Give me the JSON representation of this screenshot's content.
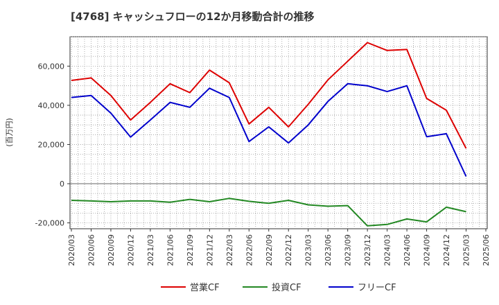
{
  "chart_data": {
    "type": "line",
    "title": "[4768]  キャッシュフローの12か月移動合計の推移",
    "ylabel": "(百万円)",
    "xlabel": "",
    "ylim": [
      -23000,
      75000
    ],
    "yticks": [
      -20000,
      0,
      20000,
      40000,
      60000
    ],
    "ytick_labels": [
      "-20,000",
      "0",
      "20,000",
      "40,000",
      "60,000"
    ],
    "xticks": [
      "2020/03",
      "2020/06",
      "2020/09",
      "2020/12",
      "2021/03",
      "2021/06",
      "2021/09",
      "2021/12",
      "2022/03",
      "2022/06",
      "2022/09",
      "2022/12",
      "2023/03",
      "2023/06",
      "2023/09",
      "2023/12",
      "2024/03",
      "2024/06",
      "2024/09",
      "2024/12",
      "2025/03",
      "2025/06"
    ],
    "grid": true,
    "legend_position": "bottom-center",
    "series": [
      {
        "name": "営業CF",
        "color": "#dd0000",
        "values": [
          52700,
          54000,
          45000,
          32500,
          41500,
          51000,
          46500,
          58000,
          51500,
          30500,
          39000,
          29000,
          40500,
          53000,
          62500,
          72000,
          68000,
          68500,
          43500,
          37500,
          18000
        ]
      },
      {
        "name": "投資CF",
        "color": "#228822",
        "values": [
          -8500,
          -8800,
          -9200,
          -8800,
          -8800,
          -9500,
          -8000,
          -9200,
          -7500,
          -9000,
          -10000,
          -8500,
          -10800,
          -11500,
          -11200,
          -21500,
          -20800,
          -18000,
          -19500,
          -12000,
          -14300
        ]
      },
      {
        "name": "フリーCF",
        "color": "#0000cc",
        "values": [
          44000,
          45000,
          36000,
          23800,
          32500,
          41500,
          39000,
          48700,
          44000,
          21500,
          29000,
          20800,
          30000,
          42000,
          51000,
          50000,
          47000,
          50000,
          24000,
          25500,
          3700
        ]
      }
    ]
  }
}
